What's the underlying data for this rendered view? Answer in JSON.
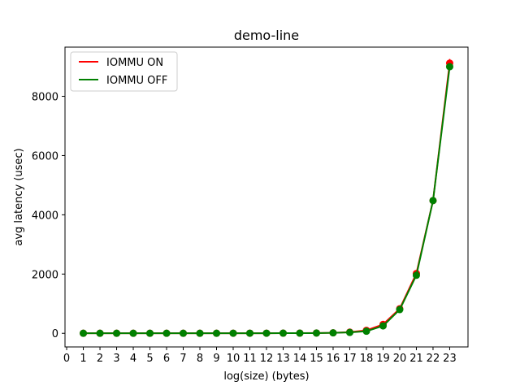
{
  "chart_data": {
    "type": "line",
    "title": "demo-line",
    "xlabel": "log(size) (bytes)",
    "ylabel": "avg latency (usec)",
    "xlim": [
      -0.1,
      24.1
    ],
    "ylim": [
      -460,
      9660
    ],
    "x_ticks": [
      0,
      1,
      2,
      3,
      4,
      5,
      6,
      7,
      8,
      9,
      10,
      11,
      12,
      13,
      14,
      15,
      16,
      17,
      18,
      19,
      20,
      21,
      22,
      23
    ],
    "y_ticks": [
      0,
      2000,
      4000,
      6000,
      8000
    ],
    "grid": false,
    "legend_position": "top-left",
    "x": [
      1,
      2,
      3,
      4,
      5,
      6,
      7,
      8,
      9,
      10,
      11,
      12,
      13,
      14,
      15,
      16,
      17,
      18,
      19,
      20,
      21,
      22,
      23
    ],
    "series": [
      {
        "name": "IOMMU ON",
        "color": "#ff0000",
        "values": [
          2,
          2,
          2,
          2,
          2,
          2,
          2,
          2,
          2,
          3,
          3,
          4,
          5,
          7,
          10,
          18,
          40,
          100,
          300,
          830,
          2020,
          4480,
          9120
        ],
        "error": [
          3,
          3,
          3,
          3,
          3,
          3,
          3,
          3,
          3,
          3,
          3,
          3,
          3,
          3,
          3,
          5,
          8,
          15,
          30,
          50,
          60,
          60,
          140
        ]
      },
      {
        "name": "IOMMU OFF",
        "color": "#008000",
        "values": [
          2,
          2,
          2,
          2,
          2,
          2,
          2,
          2,
          2,
          3,
          3,
          4,
          5,
          6,
          8,
          15,
          30,
          70,
          250,
          800,
          1960,
          4480,
          9000
        ],
        "error": [
          3,
          3,
          3,
          3,
          3,
          3,
          3,
          3,
          3,
          3,
          3,
          3,
          3,
          3,
          3,
          5,
          8,
          15,
          30,
          50,
          60,
          60,
          100
        ]
      }
    ]
  }
}
